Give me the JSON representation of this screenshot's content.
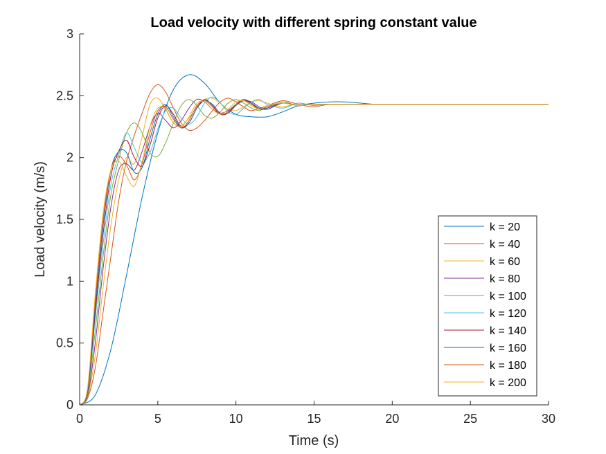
{
  "chart_data": {
    "type": "line",
    "title": "Load velocity with different spring constant value",
    "xlabel": "Time (s)",
    "ylabel": "Load velocity (m/s)",
    "xlim": [
      0,
      30
    ],
    "ylim": [
      0,
      3
    ],
    "xticks": [
      0,
      5,
      10,
      15,
      20,
      25,
      30
    ],
    "yticks": [
      0,
      0.5,
      1,
      1.5,
      2,
      2.5,
      3
    ],
    "xtick_labels": [
      "0",
      "5",
      "10",
      "15",
      "20",
      "25",
      "30"
    ],
    "ytick_labels": [
      "0",
      "0.5",
      "1",
      "1.5",
      "2",
      "2.5",
      "3"
    ],
    "grid": false,
    "legend_position": "bottom-right",
    "steady_state": 2.43,
    "series": [
      {
        "name": "k = 20",
        "color": "#0072BD",
        "points": [
          [
            0,
            0
          ],
          [
            1,
            0.08
          ],
          [
            2,
            0.45
          ],
          [
            3,
            1.05
          ],
          [
            4,
            1.68
          ],
          [
            5,
            2.2
          ],
          [
            6,
            2.55
          ],
          [
            7,
            2.67
          ],
          [
            8,
            2.6
          ],
          [
            9,
            2.44
          ],
          [
            10,
            2.35
          ],
          [
            11,
            2.33
          ],
          [
            12,
            2.33
          ],
          [
            13,
            2.37
          ],
          [
            14,
            2.42
          ],
          [
            15,
            2.44
          ],
          [
            16,
            2.45
          ],
          [
            17,
            2.45
          ],
          [
            18,
            2.44
          ],
          [
            19,
            2.43
          ],
          [
            20,
            2.43
          ],
          [
            22,
            2.43
          ],
          [
            25,
            2.43
          ],
          [
            30,
            2.43
          ]
        ]
      },
      {
        "name": "k = 40",
        "color": "#D95319",
        "points": [
          [
            0,
            0
          ],
          [
            0.5,
            0.05
          ],
          [
            1,
            0.3
          ],
          [
            1.5,
            0.75
          ],
          [
            2,
            1.2
          ],
          [
            2.5,
            1.65
          ],
          [
            3,
            1.97
          ],
          [
            3.5,
            2.18
          ],
          [
            4,
            2.36
          ],
          [
            4.5,
            2.52
          ],
          [
            5,
            2.59
          ],
          [
            5.5,
            2.53
          ],
          [
            6,
            2.4
          ],
          [
            6.5,
            2.28
          ],
          [
            7,
            2.22
          ],
          [
            7.5,
            2.24
          ],
          [
            8,
            2.3
          ],
          [
            8.5,
            2.38
          ],
          [
            9,
            2.45
          ],
          [
            9.5,
            2.48
          ],
          [
            10,
            2.45
          ],
          [
            10.5,
            2.41
          ],
          [
            11,
            2.38
          ],
          [
            12,
            2.42
          ],
          [
            13,
            2.46
          ],
          [
            14,
            2.43
          ],
          [
            15,
            2.41
          ],
          [
            16,
            2.43
          ],
          [
            18,
            2.43
          ],
          [
            20,
            2.43
          ],
          [
            30,
            2.43
          ]
        ]
      },
      {
        "name": "k = 60",
        "color": "#EDB120",
        "points": [
          [
            0,
            0
          ],
          [
            0.5,
            0.06
          ],
          [
            1,
            0.4
          ],
          [
            1.5,
            0.95
          ],
          [
            2,
            1.45
          ],
          [
            2.5,
            1.82
          ],
          [
            3,
            2.0
          ],
          [
            3.5,
            1.95
          ],
          [
            4,
            2.17
          ],
          [
            4.5,
            2.43
          ],
          [
            5,
            2.48
          ],
          [
            5.5,
            2.39
          ],
          [
            6,
            2.28
          ],
          [
            6.5,
            2.26
          ],
          [
            7,
            2.32
          ],
          [
            7.5,
            2.41
          ],
          [
            8,
            2.47
          ],
          [
            8.5,
            2.48
          ],
          [
            9,
            2.44
          ],
          [
            9.5,
            2.39
          ],
          [
            10,
            2.38
          ],
          [
            10.5,
            2.41
          ],
          [
            11,
            2.45
          ],
          [
            11.5,
            2.46
          ],
          [
            12,
            2.44
          ],
          [
            13,
            2.41
          ],
          [
            14,
            2.44
          ],
          [
            15,
            2.42
          ],
          [
            16,
            2.43
          ],
          [
            20,
            2.43
          ],
          [
            30,
            2.43
          ]
        ]
      },
      {
        "name": "k = 80",
        "color": "#7E2F8E",
        "points": [
          [
            0,
            0
          ],
          [
            0.5,
            0.07
          ],
          [
            1,
            0.5
          ],
          [
            1.5,
            1.1
          ],
          [
            2,
            1.6
          ],
          [
            2.5,
            1.9
          ],
          [
            3,
            1.95
          ],
          [
            3.5,
            1.9
          ],
          [
            4,
            2.05
          ],
          [
            4.5,
            2.25
          ],
          [
            5,
            2.36
          ],
          [
            5.5,
            2.3
          ],
          [
            6,
            2.24
          ],
          [
            6.5,
            2.3
          ],
          [
            7,
            2.4
          ],
          [
            7.5,
            2.47
          ],
          [
            8,
            2.45
          ],
          [
            8.5,
            2.39
          ],
          [
            9,
            2.36
          ],
          [
            9.5,
            2.38
          ],
          [
            10,
            2.43
          ],
          [
            10.5,
            2.46
          ],
          [
            11,
            2.45
          ],
          [
            11.5,
            2.41
          ],
          [
            12,
            2.39
          ],
          [
            13,
            2.44
          ],
          [
            14,
            2.42
          ],
          [
            15,
            2.43
          ],
          [
            20,
            2.43
          ],
          [
            30,
            2.43
          ]
        ]
      },
      {
        "name": "k = 100",
        "color": "#77AC30",
        "points": [
          [
            0,
            0
          ],
          [
            0.5,
            0.08
          ],
          [
            1,
            0.6
          ],
          [
            1.5,
            1.2
          ],
          [
            2,
            1.7
          ],
          [
            2.5,
            1.98
          ],
          [
            3,
            2.2
          ],
          [
            3.5,
            2.28
          ],
          [
            4,
            2.2
          ],
          [
            4.5,
            2.04
          ],
          [
            5,
            2.01
          ],
          [
            5.5,
            2.12
          ],
          [
            6,
            2.28
          ],
          [
            6.5,
            2.42
          ],
          [
            7,
            2.47
          ],
          [
            7.5,
            2.42
          ],
          [
            8,
            2.34
          ],
          [
            8.5,
            2.32
          ],
          [
            9,
            2.37
          ],
          [
            9.5,
            2.44
          ],
          [
            10,
            2.47
          ],
          [
            10.5,
            2.44
          ],
          [
            11,
            2.4
          ],
          [
            11.5,
            2.38
          ],
          [
            12,
            2.41
          ],
          [
            13,
            2.45
          ],
          [
            14,
            2.42
          ],
          [
            15,
            2.43
          ],
          [
            20,
            2.43
          ],
          [
            30,
            2.43
          ]
        ]
      },
      {
        "name": "k = 120",
        "color": "#4DBEEE",
        "points": [
          [
            0,
            0
          ],
          [
            0.5,
            0.09
          ],
          [
            1,
            0.7
          ],
          [
            1.5,
            1.3
          ],
          [
            2,
            1.78
          ],
          [
            2.5,
            2.02
          ],
          [
            3,
            2.2
          ],
          [
            3.5,
            2.08
          ],
          [
            4,
            1.96
          ],
          [
            4.5,
            2.04
          ],
          [
            5,
            2.23
          ],
          [
            5.5,
            2.38
          ],
          [
            6,
            2.4
          ],
          [
            6.5,
            2.32
          ],
          [
            7,
            2.27
          ],
          [
            7.5,
            2.33
          ],
          [
            8,
            2.44
          ],
          [
            8.5,
            2.49
          ],
          [
            9,
            2.44
          ],
          [
            9.5,
            2.37
          ],
          [
            10,
            2.35
          ],
          [
            10.5,
            2.4
          ],
          [
            11,
            2.45
          ],
          [
            11.5,
            2.47
          ],
          [
            12,
            2.43
          ],
          [
            13,
            2.4
          ],
          [
            14,
            2.44
          ],
          [
            15,
            2.42
          ],
          [
            16,
            2.43
          ],
          [
            20,
            2.43
          ],
          [
            30,
            2.43
          ]
        ]
      },
      {
        "name": "k = 140",
        "color": "#A2142F",
        "points": [
          [
            0,
            0
          ],
          [
            0.5,
            0.1
          ],
          [
            1,
            0.75
          ],
          [
            1.5,
            1.38
          ],
          [
            2,
            1.85
          ],
          [
            2.5,
            2.05
          ],
          [
            3,
            2.14
          ],
          [
            3.5,
            2.0
          ],
          [
            4,
            1.93
          ],
          [
            4.5,
            2.1
          ],
          [
            5,
            2.32
          ],
          [
            5.5,
            2.42
          ],
          [
            6,
            2.35
          ],
          [
            6.5,
            2.25
          ],
          [
            7,
            2.28
          ],
          [
            7.5,
            2.4
          ],
          [
            8,
            2.47
          ],
          [
            8.5,
            2.42
          ],
          [
            9,
            2.35
          ],
          [
            9.5,
            2.36
          ],
          [
            10,
            2.43
          ],
          [
            10.5,
            2.47
          ],
          [
            11,
            2.44
          ],
          [
            11.5,
            2.39
          ],
          [
            12,
            2.4
          ],
          [
            13,
            2.44
          ],
          [
            14,
            2.42
          ],
          [
            15,
            2.43
          ],
          [
            20,
            2.43
          ],
          [
            30,
            2.43
          ]
        ]
      },
      {
        "name": "k = 160",
        "color": "#0072BD",
        "points": [
          [
            0,
            0
          ],
          [
            0.5,
            0.11
          ],
          [
            1,
            0.8
          ],
          [
            1.5,
            1.45
          ],
          [
            2,
            1.9
          ],
          [
            2.5,
            2.05
          ],
          [
            3,
            2.04
          ],
          [
            3.5,
            1.88
          ],
          [
            4,
            1.92
          ],
          [
            4.5,
            2.15
          ],
          [
            5,
            2.35
          ],
          [
            5.5,
            2.43
          ],
          [
            6,
            2.33
          ],
          [
            6.5,
            2.24
          ],
          [
            7,
            2.28
          ],
          [
            7.5,
            2.4
          ],
          [
            8,
            2.46
          ],
          [
            8.5,
            2.43
          ],
          [
            9,
            2.36
          ],
          [
            9.5,
            2.36
          ],
          [
            10,
            2.42
          ],
          [
            10.5,
            2.46
          ],
          [
            11,
            2.44
          ],
          [
            11.5,
            2.4
          ],
          [
            12,
            2.4
          ],
          [
            13,
            2.44
          ],
          [
            14,
            2.42
          ],
          [
            15,
            2.43
          ],
          [
            20,
            2.43
          ],
          [
            30,
            2.43
          ]
        ]
      },
      {
        "name": "k = 180",
        "color": "#D95319",
        "points": [
          [
            0,
            0
          ],
          [
            0.5,
            0.12
          ],
          [
            1,
            0.85
          ],
          [
            1.5,
            1.5
          ],
          [
            2,
            1.9
          ],
          [
            2.5,
            2.01
          ],
          [
            3,
            1.94
          ],
          [
            3.5,
            1.82
          ],
          [
            4,
            1.95
          ],
          [
            4.5,
            2.2
          ],
          [
            5,
            2.38
          ],
          [
            5.5,
            2.41
          ],
          [
            6,
            2.31
          ],
          [
            6.5,
            2.24
          ],
          [
            7,
            2.3
          ],
          [
            7.5,
            2.42
          ],
          [
            8,
            2.46
          ],
          [
            8.5,
            2.41
          ],
          [
            9,
            2.35
          ],
          [
            9.5,
            2.37
          ],
          [
            10,
            2.43
          ],
          [
            10.5,
            2.46
          ],
          [
            11,
            2.43
          ],
          [
            11.5,
            2.39
          ],
          [
            12,
            2.41
          ],
          [
            13,
            2.44
          ],
          [
            14,
            2.42
          ],
          [
            15,
            2.43
          ],
          [
            20,
            2.43
          ],
          [
            30,
            2.43
          ]
        ]
      },
      {
        "name": "k = 200",
        "color": "#EDB120",
        "points": [
          [
            0,
            0
          ],
          [
            0.5,
            0.13
          ],
          [
            1,
            0.9
          ],
          [
            1.5,
            1.55
          ],
          [
            2,
            1.9
          ],
          [
            2.5,
            1.97
          ],
          [
            3,
            1.85
          ],
          [
            3.5,
            1.77
          ],
          [
            4,
            1.97
          ],
          [
            4.5,
            2.25
          ],
          [
            5,
            2.4
          ],
          [
            5.5,
            2.39
          ],
          [
            6,
            2.28
          ],
          [
            6.5,
            2.25
          ],
          [
            7,
            2.33
          ],
          [
            7.5,
            2.44
          ],
          [
            8,
            2.45
          ],
          [
            8.5,
            2.39
          ],
          [
            9,
            2.35
          ],
          [
            9.5,
            2.39
          ],
          [
            10,
            2.45
          ],
          [
            10.5,
            2.46
          ],
          [
            11,
            2.42
          ],
          [
            11.5,
            2.39
          ],
          [
            12,
            2.42
          ],
          [
            13,
            2.44
          ],
          [
            14,
            2.42
          ],
          [
            15,
            2.43
          ],
          [
            20,
            2.43
          ],
          [
            30,
            2.43
          ]
        ]
      }
    ]
  }
}
